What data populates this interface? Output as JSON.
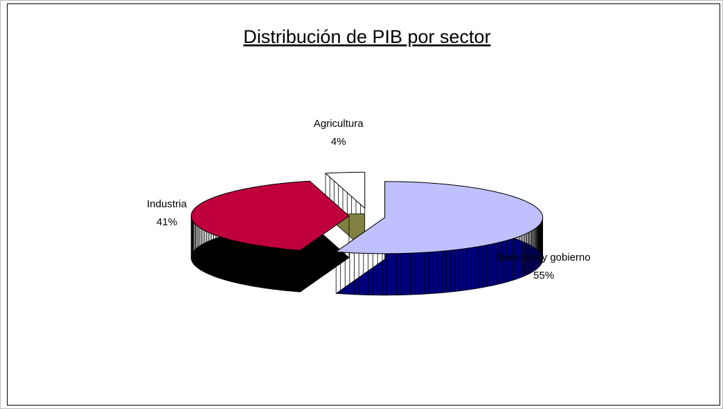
{
  "chart_data": {
    "type": "pie3d",
    "title": "Distribución de PIB por sector",
    "categories": [
      "Servicios y gobierno",
      "Industria",
      "Agricultura"
    ],
    "values": [
      55,
      41,
      4
    ],
    "value_labels": [
      "55%",
      "41%",
      "4%"
    ],
    "colors": [
      "#c0c0ff",
      "#c0003c",
      "#ffffff"
    ],
    "side_colors": [
      "#000080",
      "#000000",
      "#808040"
    ]
  }
}
